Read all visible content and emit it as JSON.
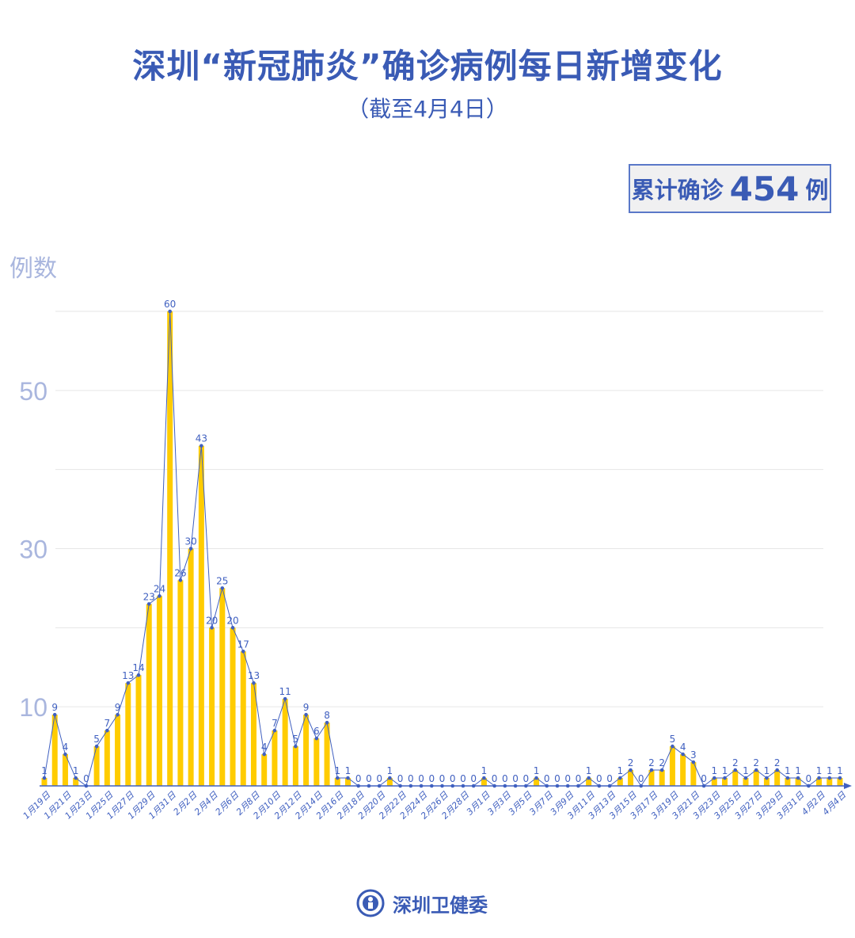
{
  "header": {
    "title": "深圳“新冠肺炎”确诊病例每日新增变化",
    "subtitle": "（截至4月4日）"
  },
  "total": {
    "prefix": "累计确诊",
    "value": "454",
    "suffix": "例"
  },
  "footer": {
    "org": "深圳卫健委"
  },
  "colors": {
    "title": "#3a5bb5",
    "bar": "#ffcc00",
    "line": "#4060c0",
    "axis_label": "#a9b6de",
    "grid": "#e6e6e6"
  },
  "chart_data": {
    "type": "bar+line",
    "ylabel": "例数",
    "ylim": [
      0,
      60
    ],
    "yticks": [
      10,
      30,
      50
    ],
    "gridlines": [
      10,
      20,
      30,
      40,
      50,
      60
    ],
    "grid": true,
    "categories": [
      "1月19日",
      "1月20日",
      "1月21日",
      "1月22日",
      "1月23日",
      "1月24日",
      "1月25日",
      "1月26日",
      "1月27日",
      "1月28日",
      "1月29日",
      "1月30日",
      "1月31日",
      "2月1日",
      "2月2日",
      "2月3日",
      "2月4日",
      "2月5日",
      "2月6日",
      "2月7日",
      "2月8日",
      "2月9日",
      "2月10日",
      "2月11日",
      "2月12日",
      "2月13日",
      "2月14日",
      "2月15日",
      "2月16日",
      "2月17日",
      "2月18日",
      "2月19日",
      "2月20日",
      "2月21日",
      "2月22日",
      "2月23日",
      "2月24日",
      "2月25日",
      "2月26日",
      "2月27日",
      "2月28日",
      "2月29日",
      "3月1日",
      "3月2日",
      "3月3日",
      "3月4日",
      "3月5日",
      "3月6日",
      "3月7日",
      "3月8日",
      "3月9日",
      "3月10日",
      "3月11日",
      "3月12日",
      "3月13日",
      "3月14日",
      "3月15日",
      "3月16日",
      "3月17日",
      "3月18日",
      "3月19日",
      "3月20日",
      "3月21日",
      "3月22日",
      "3月23日",
      "3月24日",
      "3月25日",
      "3月26日",
      "3月27日",
      "3月28日",
      "3月29日",
      "3月30日",
      "3月31日",
      "4月1日",
      "4月2日",
      "4月3日",
      "4月4日"
    ],
    "values": [
      1,
      9,
      4,
      1,
      0,
      5,
      7,
      9,
      13,
      14,
      23,
      24,
      60,
      26,
      30,
      43,
      20,
      25,
      20,
      17,
      13,
      4,
      7,
      11,
      5,
      9,
      6,
      8,
      1,
      1,
      0,
      0,
      0,
      1,
      0,
      0,
      0,
      0,
      0,
      0,
      0,
      0,
      1,
      0,
      0,
      0,
      0,
      1,
      0,
      0,
      0,
      0,
      1,
      0,
      0,
      1,
      2,
      0,
      2,
      2,
      5,
      4,
      3,
      0,
      1,
      1,
      2,
      1,
      2,
      1,
      2,
      1,
      1,
      0,
      1,
      1,
      1
    ],
    "xtick_labels_every": 2
  }
}
